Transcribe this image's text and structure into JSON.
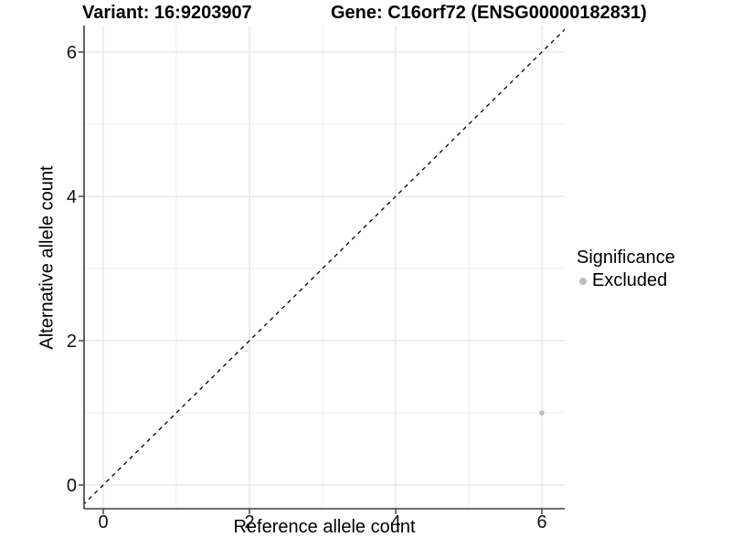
{
  "header": {
    "title_left": "Variant: 16:9203907",
    "title_right": "Gene: C16orf72 (ENSG00000182831)"
  },
  "legend": {
    "title": "Significance",
    "items": [
      {
        "label": "Excluded",
        "color": "#bdbdbd"
      }
    ]
  },
  "chart_data": {
    "type": "scatter",
    "title": "Variant: 16:9203907   Gene: C16orf72 (ENSG00000182831)",
    "xlabel": "Reference allele count",
    "ylabel": "Alternative allele count",
    "xlim": [
      -0.27,
      6.32
    ],
    "ylim": [
      -0.33,
      6.37
    ],
    "xticks": [
      0,
      2,
      4,
      6
    ],
    "yticks": [
      0,
      2,
      4,
      6
    ],
    "x_minor": [
      1,
      3,
      5
    ],
    "y_minor": [
      1,
      3,
      5
    ],
    "grid": true,
    "series": [
      {
        "name": "Excluded",
        "color": "#bdbdbd",
        "points": [
          {
            "x": 6,
            "y": 1
          }
        ]
      }
    ],
    "reference_line": {
      "type": "identity",
      "style": "dashed",
      "color": "#000000"
    },
    "legend_position": "right",
    "colors": {
      "background": "#ffffff",
      "grid_major": "#e4e4e4",
      "grid_minor": "#efefef",
      "axis_line": "#3c3c3c",
      "tick_text": "#111111",
      "point": "#bdbdbd"
    }
  }
}
